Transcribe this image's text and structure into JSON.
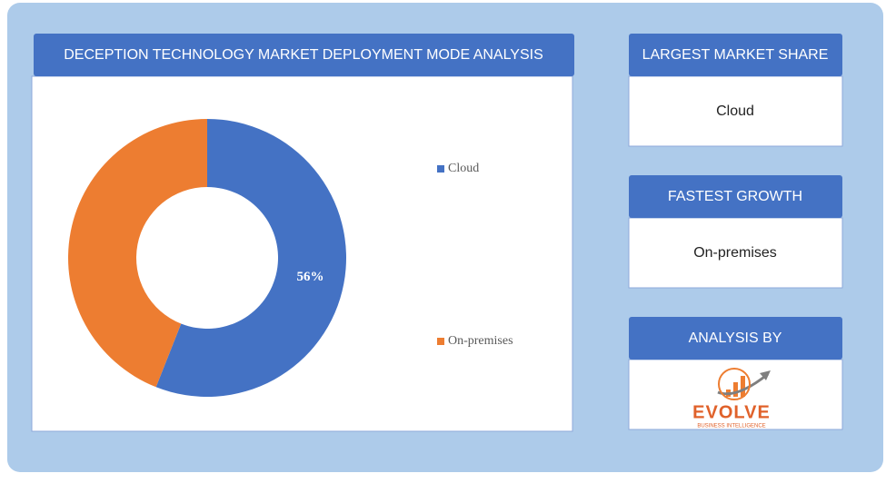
{
  "chart_data": {
    "type": "donut",
    "title": "DECEPTION TECHNOLOGY MARKET DEPLOYMENT MODE ANALYSIS",
    "categories": [
      "Cloud",
      "On-premises"
    ],
    "values": [
      56,
      44
    ],
    "value_labels": [
      "56%",
      null
    ],
    "colors": [
      "#4472c4",
      "#ed7d31"
    ],
    "legend": "right"
  },
  "panels": [
    {
      "title": "LARGEST MARKET SHARE",
      "text": "Cloud"
    },
    {
      "title": "FASTEST GROWTH",
      "text": "On-premises"
    },
    {
      "title": "ANALYSIS BY",
      "logo": {
        "name": "EVOLVE",
        "tagline": "BUSINESS INTELLIGENCE"
      }
    }
  ]
}
